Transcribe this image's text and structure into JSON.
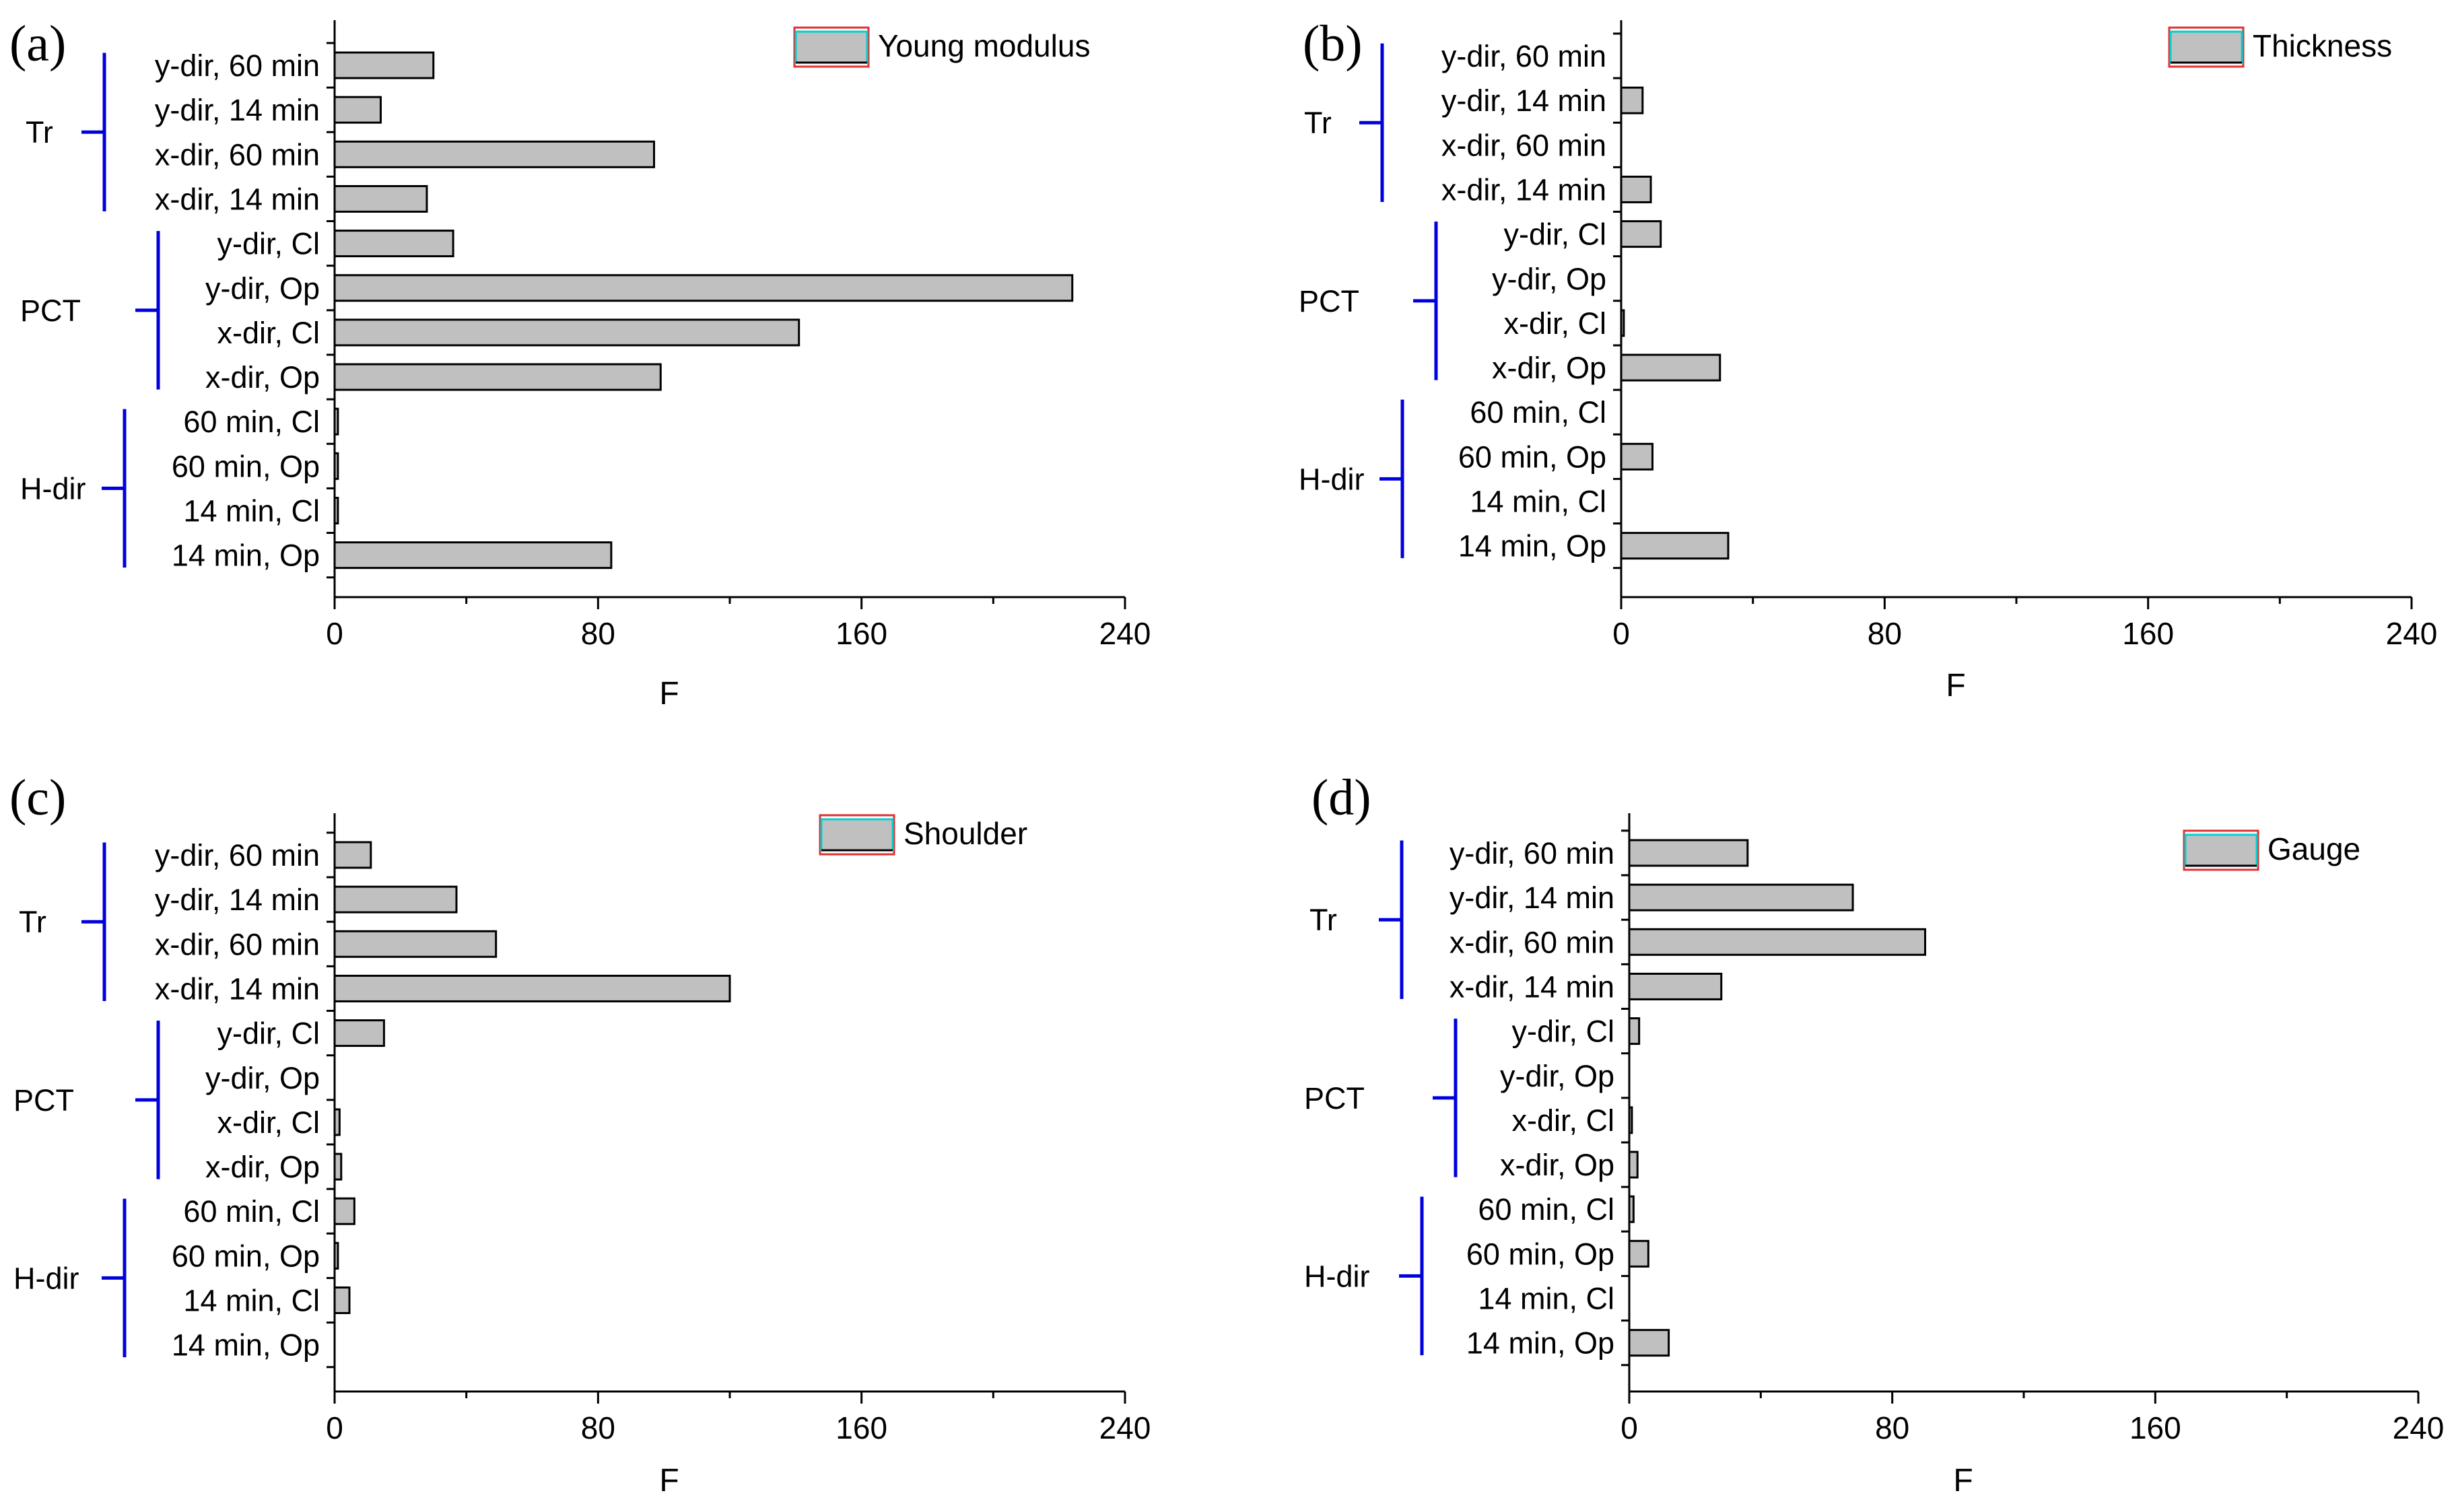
{
  "chart_data": [
    {
      "type": "bar",
      "orientation": "horizontal",
      "panel": "(a)",
      "legend": "Young modulus",
      "xlabel": "F",
      "xlim": [
        0,
        240
      ],
      "xticks": [
        0,
        80,
        160,
        240
      ],
      "categories": [
        "y-dir, 60 min",
        "y-dir, 14 min",
        "x-dir, 60 min",
        "x-dir, 14 min",
        "y-dir, Cl",
        "y-dir, Op",
        "x-dir, Cl",
        "x-dir, Op",
        "60 min, Cl",
        "60 min, Op",
        "14 min, Cl",
        "14 min, Op"
      ],
      "values": [
        30,
        14,
        97,
        28,
        36,
        224,
        141,
        99,
        1,
        1,
        1,
        84
      ],
      "groups": [
        {
          "label": "Tr",
          "start": 0,
          "end": 3
        },
        {
          "label": "PCT",
          "start": 4,
          "end": 7
        },
        {
          "label": "H-dir",
          "start": 8,
          "end": 11
        }
      ],
      "bar_color": "#c0c0c0",
      "bracket_color": "#0000dd"
    },
    {
      "type": "bar",
      "orientation": "horizontal",
      "panel": "(b)",
      "legend": "Thickness",
      "xlabel": "F",
      "xlim": [
        0,
        240
      ],
      "xticks": [
        0,
        80,
        160,
        240
      ],
      "categories": [
        "y-dir, 60 min",
        "y-dir, 14 min",
        "x-dir, 60 min",
        "x-dir, 14 min",
        "y-dir, Cl",
        "y-dir, Op",
        "x-dir, Cl",
        "x-dir, Op",
        "60 min, Cl",
        "60 min, Op",
        "14 min, Cl",
        "14 min, Op"
      ],
      "values": [
        0,
        6.5,
        0,
        9,
        12,
        0,
        0.8,
        30,
        0,
        9.5,
        0,
        32.5
      ],
      "groups": [
        {
          "label": "Tr",
          "start": 0,
          "end": 3
        },
        {
          "label": "PCT",
          "start": 4,
          "end": 7
        },
        {
          "label": "H-dir",
          "start": 8,
          "end": 11
        }
      ],
      "bar_color": "#c0c0c0",
      "bracket_color": "#0000dd"
    },
    {
      "type": "bar",
      "orientation": "horizontal",
      "panel": "(c)",
      "legend": "Shoulder",
      "xlabel": "F",
      "xlim": [
        0,
        240
      ],
      "xticks": [
        0,
        80,
        160,
        240
      ],
      "categories": [
        "y-dir, 60 min",
        "y-dir, 14 min",
        "x-dir, 60 min",
        "x-dir, 14 min",
        "y-dir, Cl",
        "y-dir, Op",
        "x-dir, Cl",
        "x-dir, Op",
        "60 min, Cl",
        "60 min, Op",
        "14 min, Cl",
        "14 min, Op"
      ],
      "values": [
        11,
        37,
        49,
        120,
        15,
        0,
        1.5,
        2,
        6,
        1,
        4.5,
        0
      ],
      "groups": [
        {
          "label": "Tr",
          "start": 0,
          "end": 3
        },
        {
          "label": "PCT",
          "start": 4,
          "end": 7
        },
        {
          "label": "H-dir",
          "start": 8,
          "end": 11
        }
      ],
      "bar_color": "#c0c0c0",
      "bracket_color": "#0000dd"
    },
    {
      "type": "bar",
      "orientation": "horizontal",
      "panel": "(d)",
      "legend": "Gauge",
      "xlabel": "F",
      "xlim": [
        0,
        240
      ],
      "xticks": [
        0,
        80,
        160,
        240
      ],
      "categories": [
        "y-dir, 60 min",
        "y-dir, 14 min",
        "x-dir, 60 min",
        "x-dir, 14 min",
        "y-dir, Cl",
        "y-dir, Op",
        "x-dir, Cl",
        "x-dir, Op",
        "60 min, Cl",
        "60 min, Op",
        "14 min, Cl",
        "14 min, Op"
      ],
      "values": [
        36,
        68,
        90,
        28,
        3,
        0,
        0.8,
        2.5,
        1.3,
        5.8,
        0,
        12
      ],
      "groups": [
        {
          "label": "Tr",
          "start": 0,
          "end": 3
        },
        {
          "label": "PCT",
          "start": 4,
          "end": 7
        },
        {
          "label": "H-dir",
          "start": 8,
          "end": 11
        }
      ],
      "bar_color": "#c0c0c0",
      "bracket_color": "#0000dd"
    }
  ]
}
